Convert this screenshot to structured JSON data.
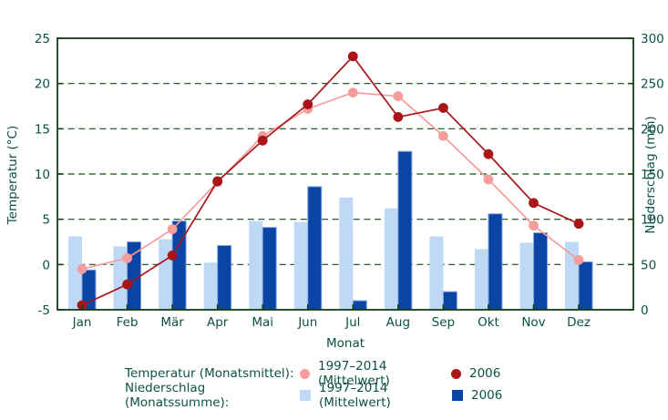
{
  "chart_data": {
    "type": "combo-bar-line",
    "categories": [
      "Jan",
      "Feb",
      "Mär",
      "Apr",
      "Mai",
      "Jun",
      "Jul",
      "Aug",
      "Sep",
      "Okt",
      "Nov",
      "Dez"
    ],
    "xlabel": "Monat",
    "y_left": {
      "label": "Temperatur (°C)",
      "min": -5,
      "max": 25,
      "ticks": [
        -5,
        0,
        5,
        10,
        15,
        20,
        25
      ]
    },
    "y_right": {
      "label": "Niederschlag (mm)",
      "min": 0,
      "max": 300,
      "ticks": [
        0,
        50,
        100,
        150,
        200,
        250,
        300
      ]
    },
    "gridlines_at_temp": [
      0,
      5,
      10,
      15,
      20
    ],
    "grid_style": "dashed",
    "legend_position": "bottom",
    "series": [
      {
        "name": "Niederschlag 1997–2014 (Mittelwert)",
        "type": "bar",
        "axis": "right",
        "values": [
          81,
          70,
          78,
          52,
          98,
          97,
          124,
          112,
          81,
          67,
          74,
          75
        ]
      },
      {
        "name": "Niederschlag 2006",
        "type": "bar",
        "axis": "right",
        "values": [
          44,
          75,
          98,
          71,
          91,
          136,
          10,
          175,
          20,
          106,
          85,
          53
        ]
      },
      {
        "name": "Temperatur 1997–2014 (Mittelwert)",
        "type": "line",
        "axis": "left",
        "values": [
          -0.5,
          0.7,
          3.9,
          9.1,
          14.2,
          17.2,
          19.0,
          18.6,
          14.2,
          9.4,
          4.3,
          0.5
        ]
      },
      {
        "name": "Temperatur 2006",
        "type": "line",
        "axis": "left",
        "values": [
          -4.5,
          -2.2,
          1.0,
          9.2,
          13.7,
          17.7,
          23.0,
          16.3,
          17.3,
          12.2,
          6.8,
          4.5
        ]
      }
    ]
  },
  "legend": {
    "rows": [
      {
        "label": "Temperatur (Monatsmittel):",
        "marker": "circle",
        "entries": [
          {
            "text": "1997–2014 (Mittelwert)",
            "color": "#f59c9c"
          },
          {
            "text": "2006",
            "color": "#a8161a"
          }
        ]
      },
      {
        "label": "Niederschlag (Monatssumme):",
        "marker": "square",
        "entries": [
          {
            "text": "1997–2014 (Mittelwert)",
            "color": "#bed8f6"
          },
          {
            "text": "2006",
            "color": "#0a45a6"
          }
        ]
      }
    ]
  },
  "colors": {
    "text": "#0b5146",
    "axis_frame": "#123f13",
    "gridline": "#164a16",
    "temp_mean": "#f59c9c",
    "temp_2006": "#a8161a",
    "precip_mean": "#bed8f6",
    "precip_2006": "#0a45a6",
    "precip_2006_edge": "#84a6dc",
    "background": "#ffffff"
  }
}
